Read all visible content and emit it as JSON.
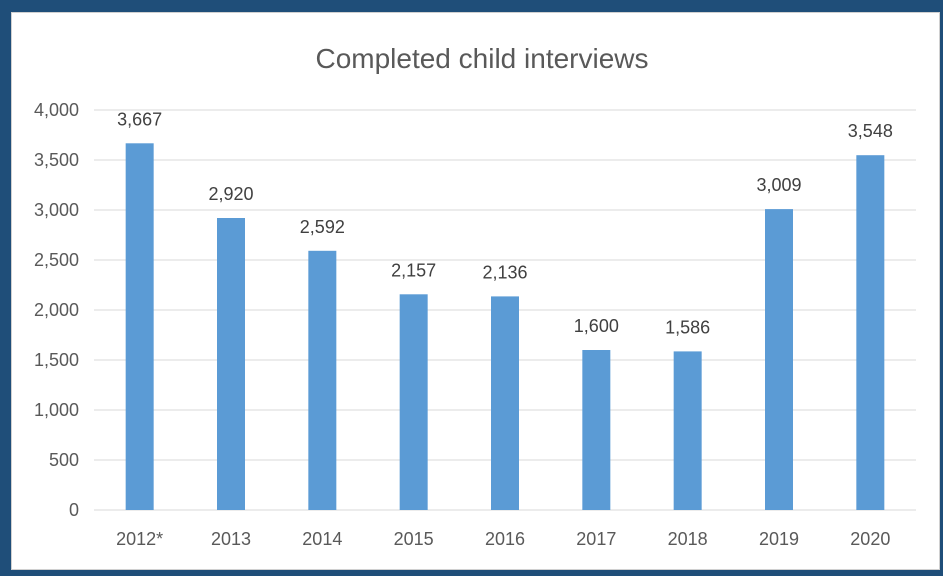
{
  "chart_data": {
    "type": "bar",
    "title": "Completed child interviews",
    "categories": [
      "2012*",
      "2013",
      "2014",
      "2015",
      "2016",
      "2017",
      "2018",
      "2019",
      "2020"
    ],
    "values": [
      3667,
      2920,
      2592,
      2157,
      2136,
      1600,
      1586,
      3009,
      3548
    ],
    "data_labels": [
      "3,667",
      "2,920",
      "2,592",
      "2,157",
      "2,136",
      "1,600",
      "1,586",
      "3,009",
      "3,548"
    ],
    "y_ticks": [
      0,
      500,
      1000,
      1500,
      2000,
      2500,
      3000,
      3500,
      4000
    ],
    "y_tick_labels": [
      "0",
      "500",
      "1,000",
      "1,500",
      "2,000",
      "2,500",
      "3,000",
      "3,500",
      "4,000"
    ],
    "ylim": [
      0,
      4000
    ],
    "grid": true,
    "legend": "none",
    "colors": {
      "bar": "#5b9bd5",
      "background": "#1f4e79",
      "gridline": "#d9d9d9",
      "text": "#595959"
    }
  }
}
